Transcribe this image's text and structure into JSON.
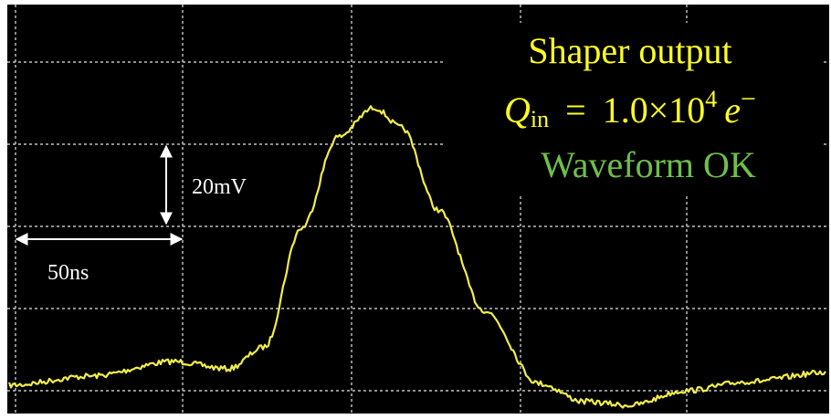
{
  "annotations": {
    "title": "Shaper output",
    "charge": {
      "symbol": "Q",
      "subscript": "in",
      "equals": "=",
      "mantissa": "1.0×10",
      "exponent": "4",
      "unit": "e",
      "unit_sign": "−"
    },
    "status": "Waveform OK"
  },
  "scale": {
    "vertical": "20mV",
    "horizontal": "50ns"
  }
}
